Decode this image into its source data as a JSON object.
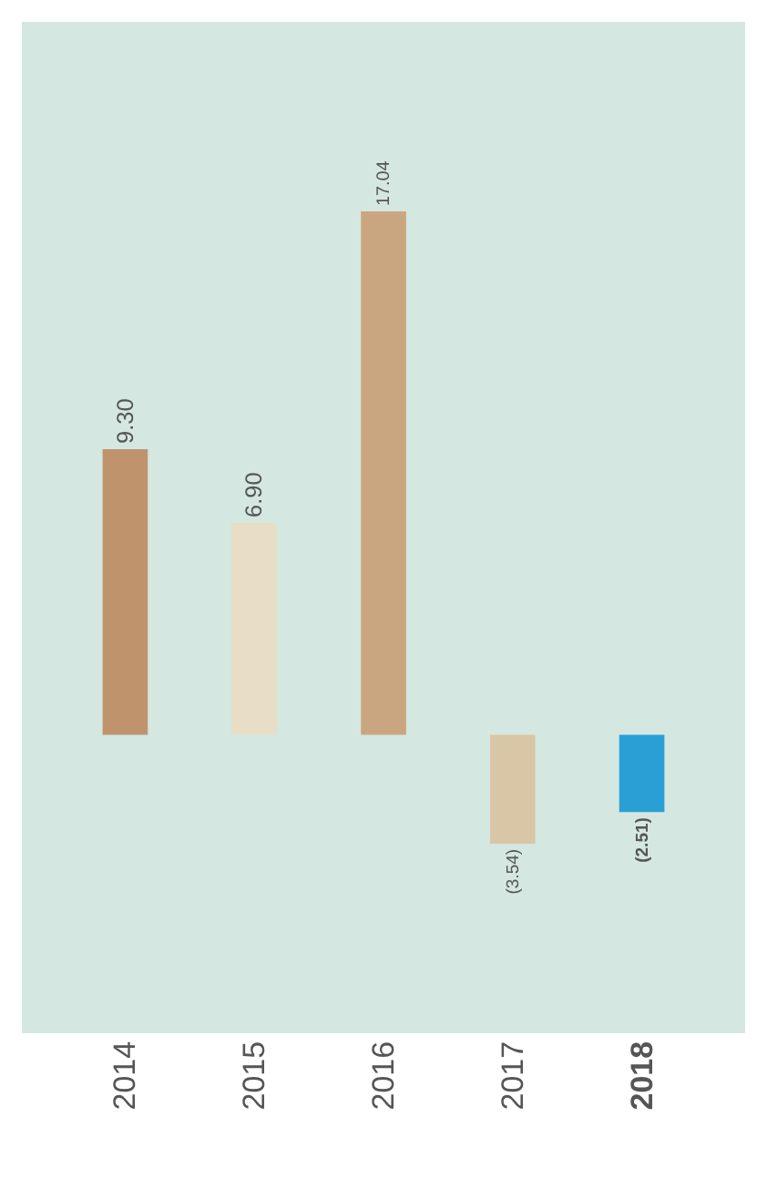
{
  "chart_data": {
    "type": "bar",
    "categories": [
      "2014",
      "2015",
      "2016",
      "2017",
      "2018"
    ],
    "values": [
      9.3,
      6.9,
      17.04,
      -3.54,
      -2.51
    ],
    "value_labels": [
      "9.30",
      "6.90",
      "17.04",
      "(3.54)",
      "(2.51)"
    ],
    "colors": [
      "#bf946c",
      "#e8dec6",
      "#c9a680",
      "#d9c6a6",
      "#2a9fd6"
    ],
    "grid": false,
    "legend": false
  }
}
